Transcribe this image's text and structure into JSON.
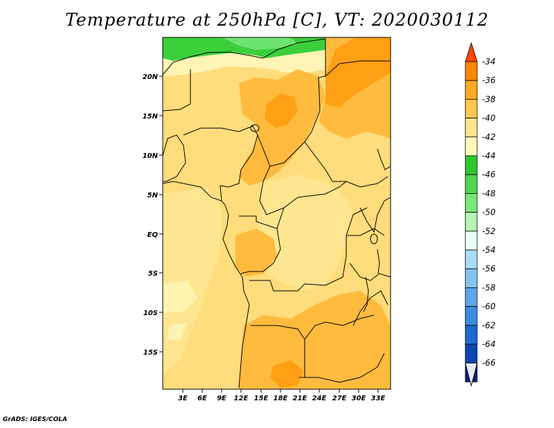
{
  "title": "Temperature at 250hPa [C], VT: 2020030112",
  "credit": "GrADS: IGES/COLA",
  "map": {
    "lat_labels": [
      "20N",
      "15N",
      "10N",
      "5N",
      "EQ",
      "5S",
      "10S",
      "15S"
    ],
    "lon_labels": [
      "3E",
      "6E",
      "9E",
      "12E",
      "15E",
      "18E",
      "21E",
      "24E",
      "27E",
      "30E",
      "33E"
    ]
  },
  "legend": {
    "labels": [
      "-34",
      "-36",
      "-38",
      "-40",
      "-42",
      "-44",
      "-46",
      "-48",
      "-50",
      "-52",
      "-54",
      "-56",
      "-58",
      "-60",
      "-62",
      "-64",
      "-66"
    ],
    "colors": [
      "#ff4400",
      "#ff8800",
      "#ffaa22",
      "#ffc84a",
      "#ffe58c",
      "#fff8b8",
      "#2ec82e",
      "#50d850",
      "#78e878",
      "#b4f4b4",
      "#e8fff8",
      "#a8dcf8",
      "#84c4f0",
      "#5ca8e8",
      "#3c8ce0",
      "#1c6cd0",
      "#0c48b0",
      "#0a1e7a",
      "#e8e8ff"
    ]
  }
}
